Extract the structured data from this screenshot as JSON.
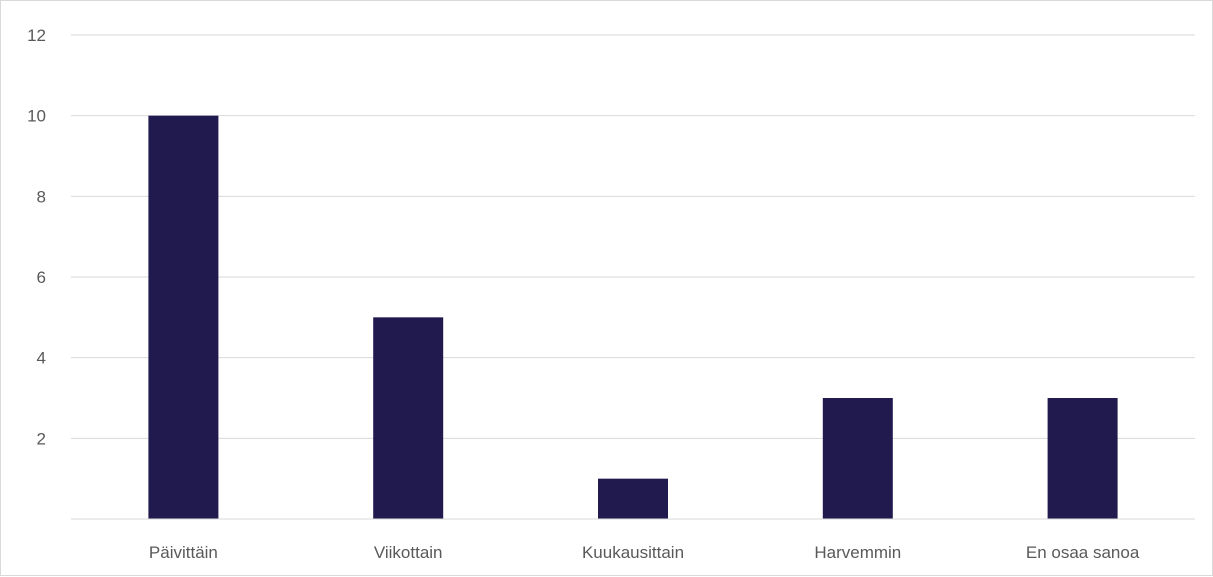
{
  "chart_data": {
    "type": "bar",
    "categories": [
      "Päivittäin",
      "Viikottain",
      "Kuukausittain",
      "Harvemmin",
      "En osaa sanoa"
    ],
    "series": [
      {
        "values": [
          10,
          5,
          1,
          3,
          3
        ],
        "color": "#201a4f"
      }
    ],
    "ylim": [
      0,
      12
    ],
    "yticks": [
      2,
      4,
      6,
      8,
      10,
      12
    ],
    "ytick_labels": [
      "2",
      "4",
      "6",
      "8",
      "10",
      "12"
    ],
    "grid": true,
    "legend": "none"
  }
}
